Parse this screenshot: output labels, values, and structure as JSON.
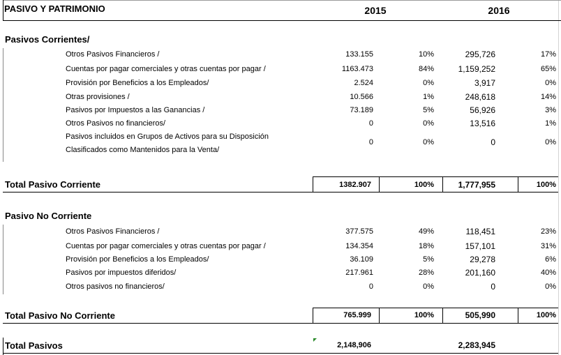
{
  "header": {
    "title": "PASIVO  Y PATRIMONIO",
    "year1": "2015",
    "year2": "2016"
  },
  "corrientes": {
    "title": "Pasivos Corrientes/",
    "rows": [
      {
        "label": "Otros Pasivos Financieros /",
        "v2015": "133.155",
        "p2015": "10%",
        "v2016": "295,726",
        "p2016": "17%"
      },
      {
        "label": "Cuentas por pagar comerciales y otras cuentas por pagar /",
        "v2015": "1163.473",
        "p2015": "84%",
        "v2016": "1,159,252",
        "p2016": "65%"
      },
      {
        "label": "Provisión por Beneficios a los Empleados/",
        "v2015": "2.524",
        "p2015": "0%",
        "v2016": "3,917",
        "p2016": "0%"
      },
      {
        "label": "Otras provisiones /",
        "v2015": "10.566",
        "p2015": "1%",
        "v2016": "248,618",
        "p2016": "14%"
      },
      {
        "label": "Pasivos por Impuestos a las Ganancias /",
        "v2015": "73.189",
        "p2015": "5%",
        "v2016": "56,926",
        "p2016": "3%"
      },
      {
        "label": "Otros Pasivos no financieros/",
        "v2015": "0",
        "p2015": "0%",
        "v2016": "13,516",
        "p2016": "1%"
      }
    ],
    "last_row": {
      "label_line1": "Pasivos incluidos en Grupos de Activos para su Disposición",
      "label_line2": "Clasificados como Mantenidos para la Venta/",
      "v2015": "0",
      "p2015": "0%",
      "v2016": "0",
      "p2016": "0%"
    },
    "total": {
      "label": "Total Pasivo Corriente",
      "v2015": "1382.907",
      "p2015": "100%",
      "v2016": "1,777,955",
      "p2016": "100%"
    }
  },
  "no_corrientes": {
    "title": "Pasivo No Corriente",
    "rows": [
      {
        "label": "Otros Pasivos Financieros /",
        "v2015": "377.575",
        "p2015": "49%",
        "v2016": "118,451",
        "p2016": "23%"
      },
      {
        "label": "Cuentas por pagar comerciales y otras cuentas por pagar /",
        "v2015": "134.354",
        "p2015": "18%",
        "v2016": "157,101",
        "p2016": "31%"
      },
      {
        "label": "Provisión por Beneficios a los Empleados/",
        "v2015": "36.109",
        "p2015": "5%",
        "v2016": "29,278",
        "p2016": "6%"
      },
      {
        "label": "Pasivos por impuestos diferidos/",
        "v2015": "217.961",
        "p2015": "28%",
        "v2016": "201,160",
        "p2016": "40%"
      },
      {
        "label": "Otros pasivos no financieros/",
        "v2015": "0",
        "p2015": "0%",
        "v2016": "0",
        "p2016": "0%"
      }
    ],
    "total": {
      "label": "Total Pasivo No Corriente",
      "v2015": "765.999",
      "p2015": "100%",
      "v2016": "505,990",
      "p2016": "100%"
    }
  },
  "total_pasivos": {
    "label": "Total Pasivos",
    "v2015": "2,148,906",
    "v2016": "2,283,945"
  },
  "colors": {
    "grid": "#d4d4d4",
    "error_marker": "#2a8a2a"
  }
}
